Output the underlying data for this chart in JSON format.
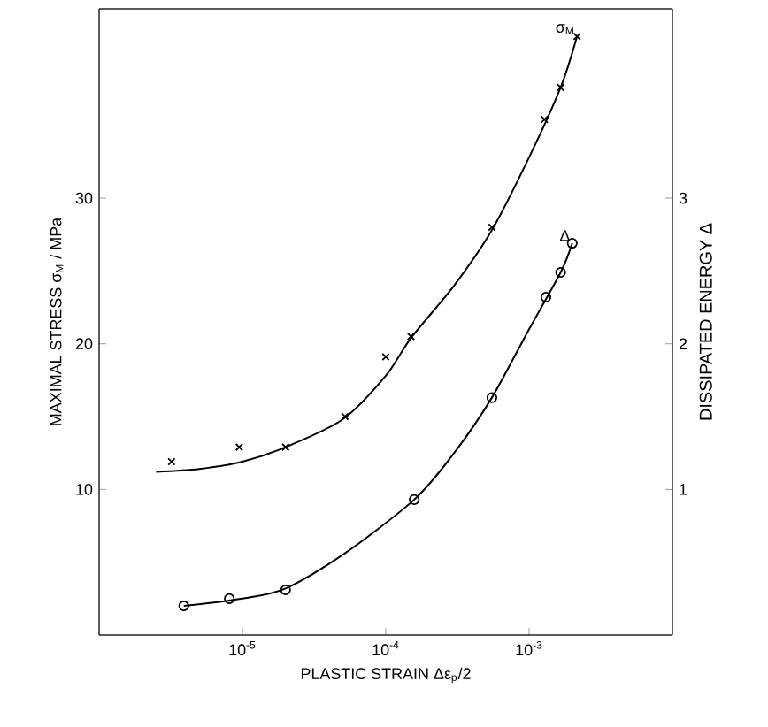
{
  "chart_data": {
    "type": "scatter",
    "xlabel": "PLASTIC STRAIN Δε$_{p}$/2",
    "ylabel": "MAXIMAL STRESS σ$_{M}$ / MPa",
    "y2label": "DISSIPATED ENERGY Δ",
    "log": "x",
    "xlim": [
      1e-06,
      0.01
    ],
    "xticks": [
      {
        "value": 1e-05,
        "label": "10$^{-5}$"
      },
      {
        "value": 0.0001,
        "label": "10$^{-4}$"
      },
      {
        "value": 0.001,
        "label": "10$^{-3}$"
      }
    ],
    "ylim": [
      0,
      43
    ],
    "yticks": [
      10,
      20,
      30
    ],
    "y2lim": [
      0,
      4.3
    ],
    "y2ticks": [
      1,
      2,
      3
    ],
    "series": [
      {
        "marker": "cross",
        "color": "#000000",
        "x": [
          3.2e-06,
          9.5e-06,
          2e-05,
          5.2e-05,
          0.0001,
          0.00015,
          0.00055,
          0.00128,
          0.00166,
          0.00216
        ],
        "values": [
          11.9,
          12.9,
          12.9,
          15.0,
          19.1,
          20.5,
          28.0,
          35.4,
          37.6,
          41.1
        ]
      },
      {
        "type": "line",
        "marker": "none",
        "color": "#000000",
        "x": [
          2.5e-06,
          5e-06,
          1e-05,
          2e-05,
          5e-05,
          0.0001,
          0.00015,
          0.0003,
          0.00055,
          0.001,
          0.00166,
          0.00216
        ],
        "values": [
          11.2,
          11.4,
          11.9,
          12.9,
          14.8,
          17.8,
          20.4,
          24.0,
          27.8,
          32.8,
          37.6,
          41.1
        ]
      },
      {
        "marker": "circle",
        "axis": "y2",
        "color": "#000000",
        "x": [
          3.9e-06,
          8.1e-06,
          2e-05,
          0.000158,
          0.00055,
          0.00131,
          0.00166,
          0.002
        ],
        "values": [
          0.2,
          0.25,
          0.31,
          0.93,
          1.63,
          2.32,
          2.49,
          2.69
        ]
      },
      {
        "type": "line",
        "marker": "none",
        "axis": "y2",
        "color": "#000000",
        "x": [
          3.9e-06,
          1e-05,
          2e-05,
          5e-05,
          0.000158,
          0.0003,
          0.00055,
          0.001,
          0.00166,
          0.002
        ],
        "values": [
          0.2,
          0.25,
          0.32,
          0.55,
          0.93,
          1.25,
          1.63,
          2.1,
          2.49,
          2.69
        ]
      }
    ],
    "annotations": [
      "σ$_{M}$",
      "Δ"
    ]
  }
}
